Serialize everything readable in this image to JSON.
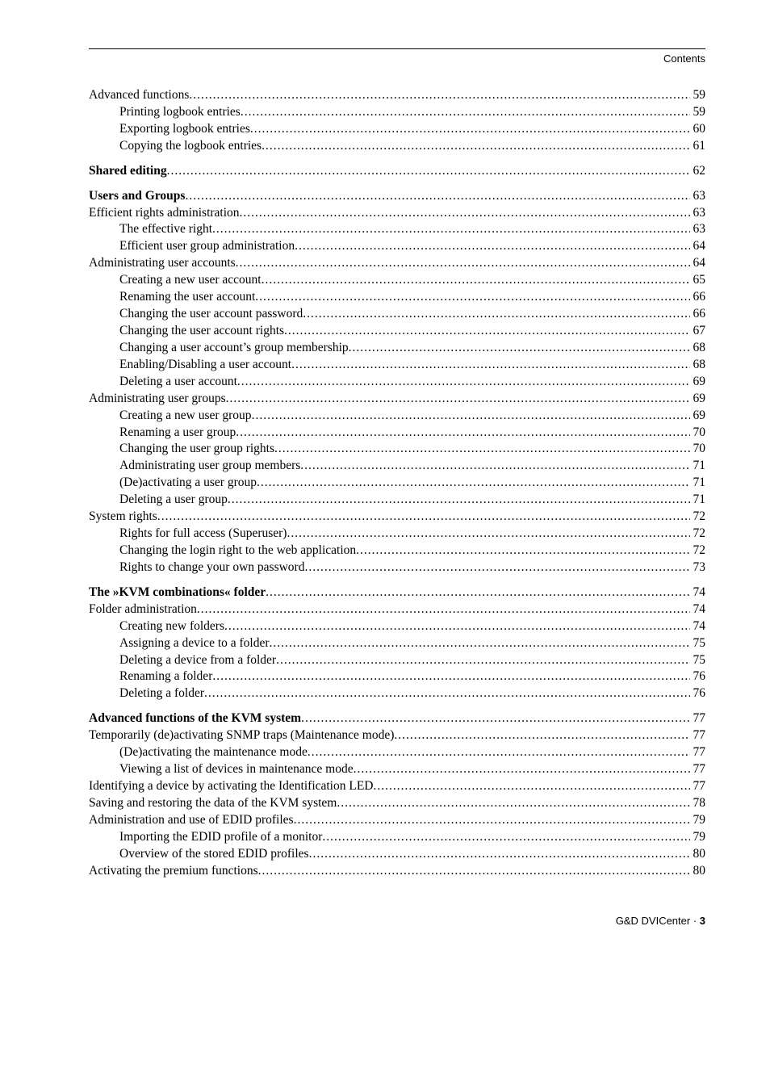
{
  "header": {
    "label": "Contents"
  },
  "footer": {
    "prefix": "G&D DVICenter · ",
    "page": "3"
  },
  "toc": [
    {
      "title": "Advanced functions ",
      "page": " 59",
      "level": 0,
      "bold": false,
      "gap": false
    },
    {
      "title": "Printing logbook entries ",
      "page": "59",
      "level": 1,
      "bold": false,
      "gap": false
    },
    {
      "title": "Exporting logbook entries ",
      "page": "60",
      "level": 1,
      "bold": false,
      "gap": false
    },
    {
      "title": "Copying the logbook entries ",
      "page": "61",
      "level": 1,
      "bold": false,
      "gap": false
    },
    {
      "title": "Shared editing ",
      "page": " 62",
      "level": 0,
      "bold": true,
      "gap": true
    },
    {
      "title": "Users and Groups ",
      "page": " 63",
      "level": 0,
      "bold": true,
      "gap": true
    },
    {
      "title": "Efficient rights administration ",
      "page": " 63",
      "level": 0,
      "bold": false,
      "gap": false
    },
    {
      "title": "The effective right ",
      "page": "63",
      "level": 1,
      "bold": false,
      "gap": false
    },
    {
      "title": "Efficient user group administration ",
      "page": "64",
      "level": 1,
      "bold": false,
      "gap": false
    },
    {
      "title": "Administrating user accounts ",
      "page": " 64",
      "level": 0,
      "bold": false,
      "gap": false
    },
    {
      "title": "Creating a new user account",
      "page": "65",
      "level": 1,
      "bold": false,
      "gap": false
    },
    {
      "title": "Renaming the user account ",
      "page": "66",
      "level": 1,
      "bold": false,
      "gap": false
    },
    {
      "title": "Changing the user account password ",
      "page": "66",
      "level": 1,
      "bold": false,
      "gap": false
    },
    {
      "title": "Changing the user account rights ",
      "page": "67",
      "level": 1,
      "bold": false,
      "gap": false
    },
    {
      "title": "Changing a user account’s group membership",
      "page": "68",
      "level": 1,
      "bold": false,
      "gap": false
    },
    {
      "title": "Enabling/Disabling a user account ",
      "page": "68",
      "level": 1,
      "bold": false,
      "gap": false
    },
    {
      "title": "Deleting a user account ",
      "page": "69",
      "level": 1,
      "bold": false,
      "gap": false
    },
    {
      "title": "Administrating user groups ",
      "page": " 69",
      "level": 0,
      "bold": false,
      "gap": false
    },
    {
      "title": "Creating a new user group",
      "page": "69",
      "level": 1,
      "bold": false,
      "gap": false
    },
    {
      "title": "Renaming a user group ",
      "page": "70",
      "level": 1,
      "bold": false,
      "gap": false
    },
    {
      "title": "Changing the user group rights ",
      "page": "70",
      "level": 1,
      "bold": false,
      "gap": false
    },
    {
      "title": "Administrating user group members ",
      "page": "71",
      "level": 1,
      "bold": false,
      "gap": false
    },
    {
      "title": "(De)activating a user group ",
      "page": "71",
      "level": 1,
      "bold": false,
      "gap": false
    },
    {
      "title": "Deleting a user group ",
      "page": "71",
      "level": 1,
      "bold": false,
      "gap": false
    },
    {
      "title": "System rights ",
      "page": " 72",
      "level": 0,
      "bold": false,
      "gap": false
    },
    {
      "title": "Rights for full access (Superuser) ",
      "page": "72",
      "level": 1,
      "bold": false,
      "gap": false
    },
    {
      "title": "Changing the login right to the web application ",
      "page": "72",
      "level": 1,
      "bold": false,
      "gap": false
    },
    {
      "title": "Rights to change your own password",
      "page": "73",
      "level": 1,
      "bold": false,
      "gap": false
    },
    {
      "title": "The »KVM combinations« folder ",
      "page": " 74",
      "level": 0,
      "bold": true,
      "gap": true
    },
    {
      "title": "Folder administration ",
      "page": " 74",
      "level": 0,
      "bold": false,
      "gap": false
    },
    {
      "title": "Creating new folders ",
      "page": "74",
      "level": 1,
      "bold": false,
      "gap": false
    },
    {
      "title": "Assigning a device to a folder ",
      "page": "75",
      "level": 1,
      "bold": false,
      "gap": false
    },
    {
      "title": "Deleting a device from a folder",
      "page": "75",
      "level": 1,
      "bold": false,
      "gap": false
    },
    {
      "title": "Renaming a folder ",
      "page": "76",
      "level": 1,
      "bold": false,
      "gap": false
    },
    {
      "title": "Deleting a folder ",
      "page": "76",
      "level": 1,
      "bold": false,
      "gap": false
    },
    {
      "title": "Advanced functions of the KVM system ",
      "page": " 77",
      "level": 0,
      "bold": true,
      "gap": true
    },
    {
      "title": "Temporarily (de)activating SNMP traps (Maintenance mode) ",
      "page": " 77",
      "level": 0,
      "bold": false,
      "gap": false
    },
    {
      "title": "(De)activating the maintenance mode",
      "page": "77",
      "level": 1,
      "bold": false,
      "gap": false
    },
    {
      "title": "Viewing a list of devices in maintenance mode",
      "page": "77",
      "level": 1,
      "bold": false,
      "gap": false
    },
    {
      "title": "Identifying a device by activating the Identification LED ",
      "page": " 77",
      "level": 0,
      "bold": false,
      "gap": false
    },
    {
      "title": "Saving and restoring the data of the KVM system ",
      "page": " 78",
      "level": 0,
      "bold": false,
      "gap": false
    },
    {
      "title": "Administration and use of EDID profiles ",
      "page": " 79",
      "level": 0,
      "bold": false,
      "gap": false
    },
    {
      "title": "Importing the EDID profile of a monitor ",
      "page": "79",
      "level": 1,
      "bold": false,
      "gap": false
    },
    {
      "title": "Overview of the stored EDID profiles",
      "page": "80",
      "level": 1,
      "bold": false,
      "gap": false
    },
    {
      "title": "Activating the premium functions ",
      "page": " 80",
      "level": 0,
      "bold": false,
      "gap": false
    }
  ]
}
